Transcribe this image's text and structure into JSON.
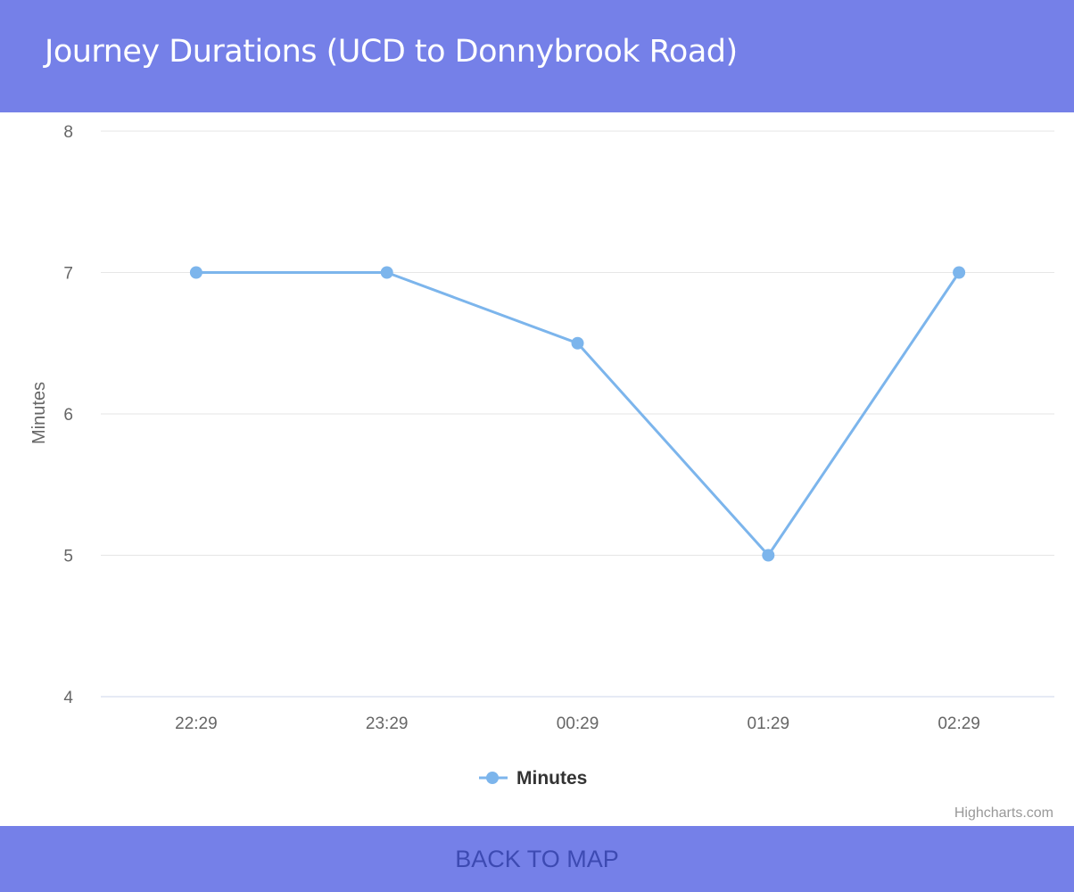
{
  "header": {
    "title": "Journey Durations (UCD to Donnybrook Road)"
  },
  "footer": {
    "back_label": "BACK TO MAP"
  },
  "credits": "Highcharts.com",
  "colors": {
    "header_bg": "#7580e8",
    "series": "#7cb5ec",
    "grid": "#e6e6e6",
    "button_text": "#3d4ab2"
  },
  "chart_data": {
    "type": "line",
    "categories": [
      "22:29",
      "23:29",
      "00:29",
      "01:29",
      "02:29"
    ],
    "series": [
      {
        "name": "Minutes",
        "values": [
          7,
          7,
          6.5,
          5,
          7
        ]
      }
    ],
    "ylabel": "Minutes",
    "yticks": [
      4,
      5,
      6,
      7,
      8
    ],
    "ylim": [
      4,
      8
    ],
    "legend": "bottom-center",
    "grid": true
  }
}
